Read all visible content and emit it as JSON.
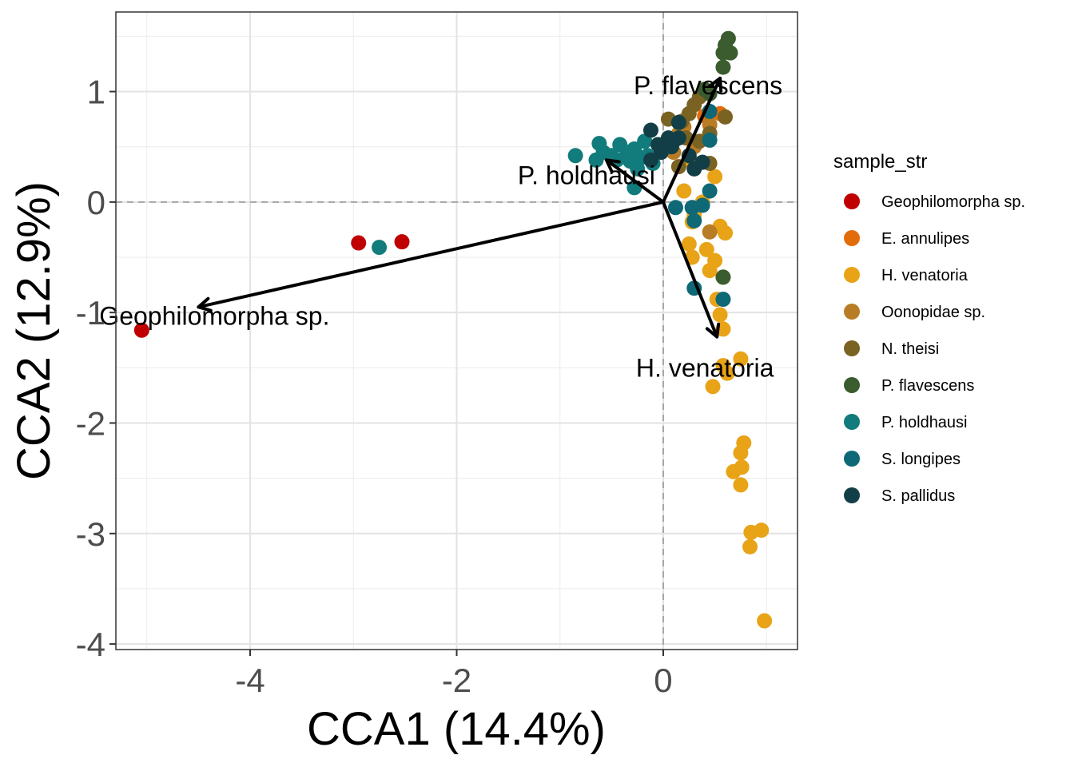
{
  "chart_data": {
    "type": "scatter",
    "xlabel": "CCA1 (14.4%)",
    "ylabel": "CCA2 (12.9%)",
    "xlim": [
      -5.3,
      1.3
    ],
    "ylim": [
      -4.05,
      1.72
    ],
    "x_ticks": [
      -4,
      -2,
      0
    ],
    "y_ticks": [
      1,
      0,
      -1,
      -2,
      -3,
      -4
    ],
    "x_tick_labels": [
      "-4",
      "-2",
      "0"
    ],
    "y_tick_labels": [
      "1",
      "0",
      "-1",
      "-2",
      "-3",
      "-4"
    ],
    "grid": true,
    "zero_lines": "dashed",
    "legend": {
      "title": "sample_str",
      "position": "right"
    },
    "series": [
      {
        "name": "Geophilomorpha sp.",
        "color": "#C00000",
        "points": [
          [
            -5.05,
            -1.16
          ],
          [
            -2.95,
            -0.37
          ],
          [
            -2.53,
            -0.36
          ]
        ]
      },
      {
        "name": "E. annulipes",
        "color": "#E36C0A",
        "points": [
          [
            0.55,
            0.8
          ],
          [
            0.4,
            0.78
          ]
        ]
      },
      {
        "name": "H. venatoria",
        "color": "#E8A317",
        "points": [
          [
            0.28,
            0.36
          ],
          [
            0.5,
            0.23
          ],
          [
            0.2,
            0.1
          ],
          [
            0.38,
            0.0
          ],
          [
            0.3,
            -0.12
          ],
          [
            0.28,
            -0.18
          ],
          [
            0.55,
            -0.22
          ],
          [
            0.6,
            -0.28
          ],
          [
            0.25,
            -0.38
          ],
          [
            0.42,
            -0.43
          ],
          [
            0.28,
            -0.5
          ],
          [
            0.5,
            -0.53
          ],
          [
            0.45,
            -0.62
          ],
          [
            0.58,
            -0.68
          ],
          [
            0.52,
            -0.88
          ],
          [
            0.55,
            -1.02
          ],
          [
            0.58,
            -1.15
          ],
          [
            0.75,
            -1.42
          ],
          [
            0.58,
            -1.48
          ],
          [
            0.62,
            -1.55
          ],
          [
            0.48,
            -1.67
          ],
          [
            0.78,
            -2.18
          ],
          [
            0.75,
            -2.27
          ],
          [
            0.76,
            -2.4
          ],
          [
            0.68,
            -2.44
          ],
          [
            0.75,
            -2.56
          ],
          [
            0.85,
            -2.99
          ],
          [
            0.95,
            -2.97
          ],
          [
            0.84,
            -3.12
          ],
          [
            0.98,
            -3.79
          ]
        ]
      },
      {
        "name": "Oonopidae sp.",
        "color": "#B87C25",
        "points": [
          [
            0.2,
            0.68
          ],
          [
            0.15,
            0.62
          ],
          [
            0.45,
            0.7
          ],
          [
            0.3,
            0.5
          ],
          [
            0.1,
            0.45
          ],
          [
            0.45,
            -0.27
          ]
        ]
      },
      {
        "name": "N. theisi",
        "color": "#7A6223",
        "points": [
          [
            0.05,
            0.75
          ],
          [
            0.3,
            0.88
          ],
          [
            0.25,
            0.8
          ],
          [
            0.35,
            0.95
          ],
          [
            0.18,
            0.73
          ],
          [
            0.6,
            0.77
          ],
          [
            0.45,
            0.62
          ],
          [
            0.22,
            0.58
          ],
          [
            0.35,
            0.55
          ],
          [
            0.15,
            0.32
          ],
          [
            0.45,
            0.35
          ]
        ]
      },
      {
        "name": "P. flavescens",
        "color": "#3A5C2E",
        "points": [
          [
            0.63,
            1.48
          ],
          [
            0.6,
            1.42
          ],
          [
            0.58,
            1.35
          ],
          [
            0.65,
            1.35
          ],
          [
            0.58,
            1.22
          ],
          [
            0.4,
            1.02
          ],
          [
            0.45,
            0.98
          ],
          [
            0.58,
            -0.68
          ]
        ]
      },
      {
        "name": "P. holdhausi",
        "color": "#127B7B",
        "points": [
          [
            -0.85,
            0.42
          ],
          [
            -0.62,
            0.53
          ],
          [
            -0.58,
            0.45
          ],
          [
            -0.65,
            0.38
          ],
          [
            -0.5,
            0.42
          ],
          [
            -0.45,
            0.38
          ],
          [
            -0.42,
            0.52
          ],
          [
            -0.35,
            0.45
          ],
          [
            -0.28,
            0.48
          ],
          [
            -0.22,
            0.4
          ],
          [
            -0.18,
            0.55
          ],
          [
            -0.32,
            0.37
          ],
          [
            -0.15,
            0.42
          ],
          [
            -0.25,
            0.3
          ],
          [
            -0.1,
            0.35
          ],
          [
            -0.28,
            0.13
          ],
          [
            -2.75,
            -0.41
          ]
        ]
      },
      {
        "name": "S. longipes",
        "color": "#0E6876",
        "points": [
          [
            0.45,
            0.82
          ],
          [
            0.45,
            0.56
          ],
          [
            0.45,
            0.1
          ],
          [
            0.28,
            -0.05
          ],
          [
            0.12,
            -0.05
          ],
          [
            0.38,
            -0.03
          ],
          [
            0.3,
            -0.17
          ],
          [
            0.3,
            -0.78
          ],
          [
            0.58,
            -0.88
          ]
        ]
      },
      {
        "name": "S. pallidus",
        "color": "#123F47",
        "points": [
          [
            -0.12,
            0.65
          ],
          [
            0.15,
            0.72
          ],
          [
            0.05,
            0.58
          ],
          [
            0.15,
            0.58
          ],
          [
            -0.05,
            0.52
          ],
          [
            0.08,
            0.5
          ],
          [
            -0.12,
            0.38
          ],
          [
            -0.02,
            0.45
          ],
          [
            0.25,
            0.42
          ],
          [
            0.1,
            0.55
          ],
          [
            0.38,
            0.36
          ],
          [
            0.3,
            0.3
          ]
        ]
      }
    ],
    "arrows": [
      {
        "label": "Geophilomorpha sp.",
        "x": -4.5,
        "y": -0.95
      },
      {
        "label": "P. flavescens",
        "x": 0.55,
        "y": 1.12
      },
      {
        "label": "P. holdhausi",
        "x": -0.55,
        "y": 0.38
      },
      {
        "label": "H. venatoria",
        "x": 0.52,
        "y": -1.22
      }
    ]
  }
}
